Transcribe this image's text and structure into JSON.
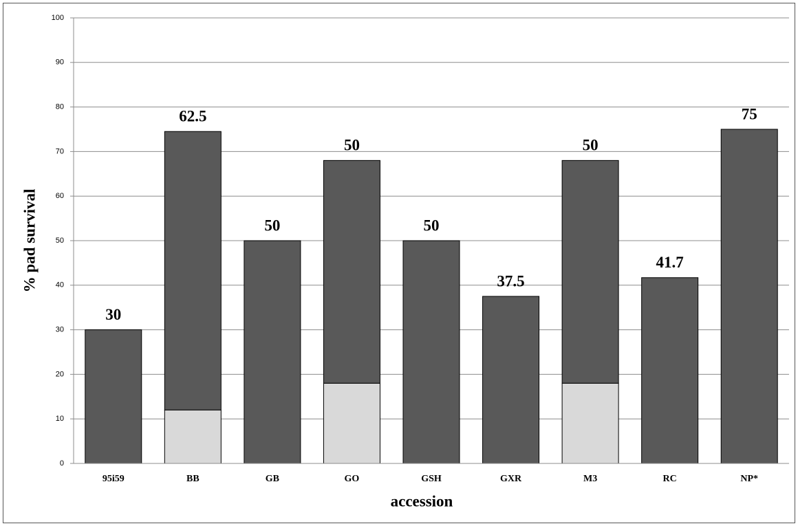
{
  "chart_data": {
    "type": "stacked_bar",
    "x_label": "accession",
    "y_label": "% pad survival",
    "categories": [
      "95i59",
      "BB",
      "GB",
      "GO",
      "GSH",
      "GXR",
      "M3",
      "RC",
      "NP*"
    ],
    "series": [
      {
        "color": "#d9d9d9",
        "values": [
          null,
          12,
          null,
          18,
          null,
          null,
          18,
          null,
          null
        ]
      },
      {
        "color": "#595959",
        "values": [
          30,
          62.5,
          50,
          50,
          50,
          37.5,
          50,
          41.7,
          75
        ]
      }
    ],
    "ylim": [
      0,
      100
    ],
    "yticks": [
      0,
      10,
      20,
      30,
      40,
      50,
      60,
      70,
      80,
      90,
      100
    ],
    "grid": true
  }
}
